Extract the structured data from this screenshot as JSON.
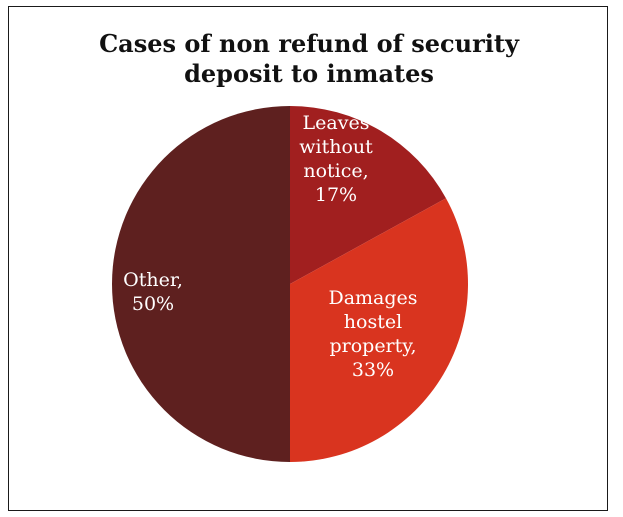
{
  "chart_data": {
    "type": "pie",
    "title": "Cases of non refund of security deposit to inmates",
    "slices": [
      {
        "label_lines": [
          "Leaves",
          "without",
          "notice,",
          "17%"
        ],
        "value": 17,
        "color": "#a11f1f"
      },
      {
        "label_lines": [
          "Damages",
          "hostel",
          "property,",
          "33%"
        ],
        "value": 33,
        "color": "#d9341f"
      },
      {
        "label_lines": [
          "Other,",
          "50%"
        ],
        "value": 50,
        "color": "#5e201f"
      }
    ],
    "start_angle_deg": 0,
    "direction": "clockwise",
    "legend": "none"
  }
}
